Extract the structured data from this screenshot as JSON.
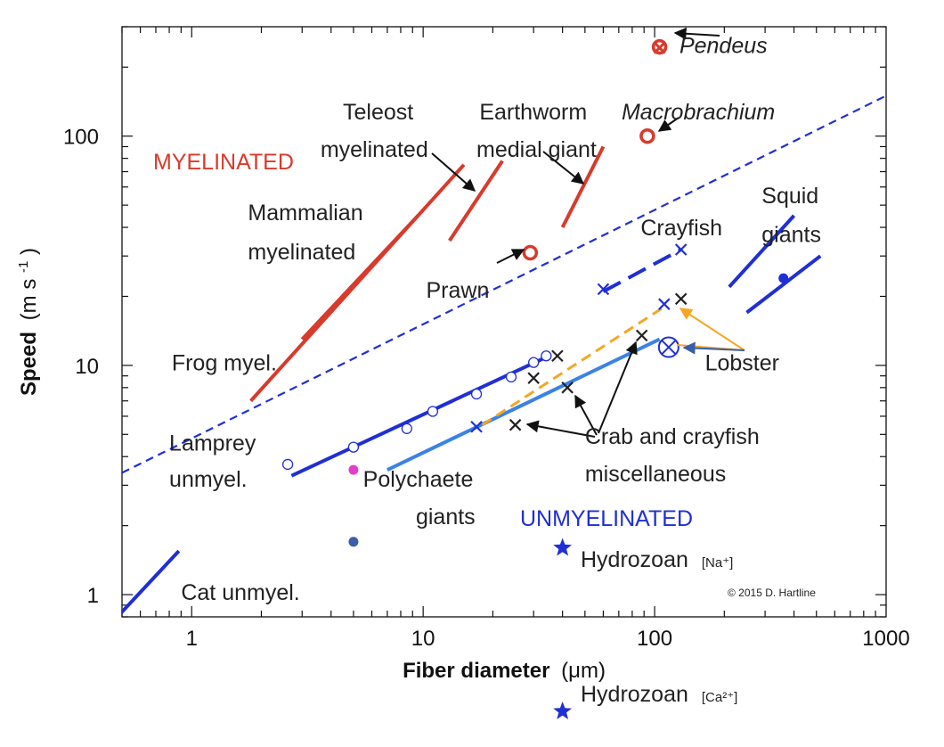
{
  "chart_data": {
    "type": "scatter",
    "title": "",
    "xlabel": {
      "bold": "Fiber diameter",
      "unit": "(μm)"
    },
    "ylabel": {
      "bold": "Speed",
      "unit": "(m s",
      "sup": "-1",
      "close": ")"
    },
    "xscale": "log",
    "yscale": "log",
    "xlim": [
      0.5,
      1000
    ],
    "ylim": [
      0.8,
      300
    ],
    "x_ticks": [
      {
        "v": 1,
        "label": "1"
      },
      {
        "v": 10,
        "label": "10"
      },
      {
        "v": 100,
        "label": "100"
      },
      {
        "v": 1000,
        "label": "1000"
      }
    ],
    "y_ticks": [
      {
        "v": 1,
        "label": "1"
      },
      {
        "v": 10,
        "label": "10"
      },
      {
        "v": 100,
        "label": "100"
      }
    ],
    "group_labels": {
      "myelinated": "MYELINATED",
      "unmyelinated": "UNMYELINATED"
    },
    "copyright": "© 2015 D. Hartline",
    "series": [
      {
        "name": "Mammalian myelinated",
        "kind": "line",
        "color": "#d93a2b",
        "points": [
          [
            1.8,
            7
          ],
          [
            15,
            75
          ]
        ]
      },
      {
        "name": "Frog myel.",
        "kind": "line",
        "color": "#d93a2b",
        "points": [
          [
            3,
            13
          ],
          [
            9.5,
            45
          ]
        ]
      },
      {
        "name": "Teleost myelinated",
        "kind": "line",
        "color": "#d93a2b",
        "points": [
          [
            13,
            35
          ],
          [
            22,
            78
          ]
        ]
      },
      {
        "name": "Earthworm medial giant",
        "kind": "line",
        "color": "#d93a2b",
        "points": [
          [
            40,
            40
          ],
          [
            60,
            90
          ]
        ]
      },
      {
        "name": "Myelinated upper bound",
        "kind": "dashed",
        "color": "#1f2fd6",
        "points": [
          [
            0.5,
            3.4
          ],
          [
            1000,
            150
          ]
        ]
      },
      {
        "name": "Squid giants (upper)",
        "kind": "line",
        "color": "#1f2fd6",
        "points": [
          [
            210,
            22
          ],
          [
            400,
            45
          ]
        ]
      },
      {
        "name": "Squid giants (lower)",
        "kind": "line",
        "color": "#1f2fd6",
        "points": [
          [
            250,
            17
          ],
          [
            520,
            30
          ]
        ]
      },
      {
        "name": "Crayfish",
        "kind": "dashed",
        "color": "#1f2fd6",
        "points": [
          [
            60,
            21
          ],
          [
            130,
            32
          ]
        ]
      },
      {
        "name": "Lamprey unmyel.",
        "kind": "line",
        "color": "#1f2fd6",
        "points": [
          [
            2.7,
            3.3
          ],
          [
            35,
            11
          ]
        ]
      },
      {
        "name": "Polychaete giants",
        "kind": "line",
        "color": "#3b82e6",
        "points": [
          [
            7,
            3.5
          ],
          [
            105,
            13
          ]
        ]
      },
      {
        "name": "Lobster trend",
        "kind": "dashed",
        "color": "#f5a623",
        "points": [
          [
            18,
            5.5
          ],
          [
            110,
            18
          ]
        ]
      },
      {
        "name": "Cat unmyel.",
        "kind": "line",
        "color": "#1f2fd6",
        "points": [
          [
            0.45,
            0.75
          ],
          [
            0.88,
            1.55
          ]
        ]
      }
    ],
    "points": [
      {
        "name": "Pendeus",
        "x": 105,
        "y": 245,
        "marker": "o-x",
        "color": "#d93a2b"
      },
      {
        "name": "Macrobrachium",
        "x": 93,
        "y": 100,
        "marker": "o",
        "color": "#d93a2b"
      },
      {
        "name": "Prawn",
        "x": 29,
        "y": 31,
        "marker": "o",
        "color": "#d93a2b"
      },
      {
        "name": "Lamprey",
        "x": 2.6,
        "y": 3.7,
        "marker": "open",
        "color": "#1f2fd6"
      },
      {
        "name": "Lamprey",
        "x": 5,
        "y": 4.4,
        "marker": "open",
        "color": "#1f2fd6"
      },
      {
        "name": "Lamprey",
        "x": 8.5,
        "y": 5.3,
        "marker": "open",
        "color": "#1f2fd6"
      },
      {
        "name": "Lamprey",
        "x": 11,
        "y": 6.3,
        "marker": "open",
        "color": "#1f2fd6"
      },
      {
        "name": "Lamprey",
        "x": 17,
        "y": 7.5,
        "marker": "open",
        "color": "#1f2fd6"
      },
      {
        "name": "Lamprey",
        "x": 24,
        "y": 8.9,
        "marker": "open",
        "color": "#1f2fd6"
      },
      {
        "name": "Lamprey",
        "x": 30,
        "y": 10.3,
        "marker": "open",
        "color": "#1f2fd6"
      },
      {
        "name": "Lamprey",
        "x": 34,
        "y": 11,
        "marker": "open",
        "color": "#1f2fd6"
      },
      {
        "name": "Polychaete",
        "x": 5,
        "y": 3.5,
        "marker": "filled",
        "color": "#e040c8"
      },
      {
        "name": "Polychaete",
        "x": 5,
        "y": 1.7,
        "marker": "filled",
        "color": "#3b5ea8"
      },
      {
        "name": "Squid",
        "x": 360,
        "y": 24,
        "marker": "filled",
        "color": "#1f2fd6"
      },
      {
        "name": "Crayfish",
        "x": 60,
        "y": 21.5,
        "marker": "x",
        "color": "#1f2fd6"
      },
      {
        "name": "Crayfish",
        "x": 130,
        "y": 32,
        "marker": "x",
        "color": "#1f2fd6"
      },
      {
        "name": "Crayfish",
        "x": 110,
        "y": 18.5,
        "marker": "x",
        "color": "#1f2fd6"
      },
      {
        "name": "Crayfish",
        "x": 17,
        "y": 5.4,
        "marker": "x",
        "color": "#1f2fd6"
      },
      {
        "name": "Crab and crayfish",
        "x": 38,
        "y": 11,
        "marker": "x",
        "color": "#222222"
      },
      {
        "name": "Crab and crayfish",
        "x": 30,
        "y": 8.8,
        "marker": "x",
        "color": "#222222"
      },
      {
        "name": "Crab and crayfish",
        "x": 42,
        "y": 8.0,
        "marker": "x",
        "color": "#222222"
      },
      {
        "name": "Crab and crayfish",
        "x": 25,
        "y": 5.5,
        "marker": "x",
        "color": "#222222"
      },
      {
        "name": "Crab and crayfish",
        "x": 88,
        "y": 13.5,
        "marker": "x",
        "color": "#222222"
      },
      {
        "name": "Crab and crayfish",
        "x": 130,
        "y": 19.5,
        "marker": "x",
        "color": "#222222"
      },
      {
        "name": "Lobster",
        "x": 115,
        "y": 12,
        "marker": "circle-x",
        "color": "#1f2fd6"
      },
      {
        "name": "Hydrozoan [Na+]",
        "x": 40,
        "y": 1.6,
        "marker": "star",
        "color": "#1f2fd6"
      }
    ],
    "below_axis_point": {
      "name": "Hydrozoan [Ca2+]",
      "x": 40,
      "marker": "star",
      "color": "#1f2fd6"
    },
    "annotations": [
      {
        "id": "mammal1",
        "text": "Mammalian",
        "x": 1.75,
        "y": 43,
        "color": "#222222"
      },
      {
        "id": "mammal2",
        "text": "myelinated",
        "x": 1.75,
        "y": 29,
        "color": "#222222"
      },
      {
        "id": "teleost1",
        "text": "Teleost",
        "x": 4.5,
        "y": 118,
        "color": "#222222"
      },
      {
        "id": "teleost2",
        "text": "myelinated",
        "x": 3.6,
        "y": 81,
        "color": "#222222"
      },
      {
        "id": "earth1",
        "text": "Earthworm",
        "x": 17.5,
        "y": 118,
        "color": "#222222"
      },
      {
        "id": "earth2",
        "text": "medial giant",
        "x": 17,
        "y": 81,
        "color": "#222222"
      },
      {
        "id": "macro",
        "text": "Macrobrachium",
        "x": 72,
        "y": 118,
        "color": "#222222",
        "italic": true
      },
      {
        "id": "pendeus",
        "text": "Pendeus",
        "x": 128,
        "y": 230,
        "color": "#222222",
        "italic": true
      },
      {
        "id": "prawn",
        "text": "Prawn",
        "x": 10.3,
        "y": 19.7,
        "color": "#222222"
      },
      {
        "id": "crayfish",
        "text": "Crayfish",
        "x": 87,
        "y": 37,
        "color": "#222222"
      },
      {
        "id": "squid1",
        "text": "Squid",
        "x": 290,
        "y": 51,
        "color": "#222222"
      },
      {
        "id": "squid2",
        "text": "giants",
        "x": 290,
        "y": 34.5,
        "color": "#222222"
      },
      {
        "id": "frog",
        "text": "Frog myel.",
        "x": 0.82,
        "y": 9.5,
        "color": "#222222"
      },
      {
        "id": "lobster",
        "text": "Lobster",
        "x": 165,
        "y": 9.5,
        "color": "#222222"
      },
      {
        "id": "lamprey1",
        "text": "Lamprey",
        "x": 0.8,
        "y": 4.25,
        "color": "#222222"
      },
      {
        "id": "lamprey2",
        "text": "unmyel.",
        "x": 0.8,
        "y": 2.95,
        "color": "#222222"
      },
      {
        "id": "poly1",
        "text": "Polychaete",
        "x": 5.5,
        "y": 2.95,
        "color": "#222222"
      },
      {
        "id": "poly2",
        "text": "giants",
        "x": 9.3,
        "y": 2.03,
        "color": "#222222"
      },
      {
        "id": "crab1",
        "text": "Crab and crayfish",
        "x": 50,
        "y": 4.55,
        "color": "#222222"
      },
      {
        "id": "crab2",
        "text": "miscellaneous",
        "x": 50,
        "y": 3.12,
        "color": "#222222"
      },
      {
        "id": "cat",
        "text": "Cat unmyel.",
        "x": 0.9,
        "y": 0.95,
        "color": "#222222"
      }
    ],
    "hydrozoan_na": {
      "text": "Hydrozoan",
      "sub": "[Na⁺]"
    },
    "hydrozoan_ca": {
      "text": "Hydrozoan",
      "sub": "[Ca²⁺]"
    }
  }
}
